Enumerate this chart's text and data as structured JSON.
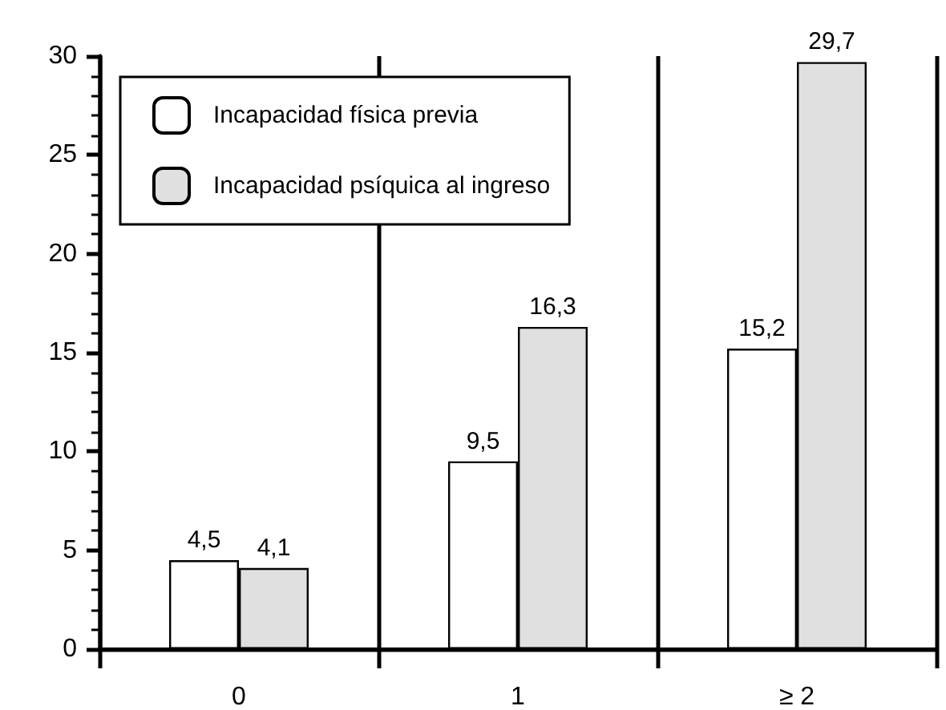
{
  "chart_data": {
    "type": "bar",
    "categories": [
      "0",
      "1",
      "≥ 2"
    ],
    "series": [
      {
        "name": "Incapacidad física previa",
        "color": "#ffffff",
        "values": [
          4.5,
          9.5,
          15.2
        ],
        "value_labels": [
          "4,5",
          "9,5",
          "15,2"
        ]
      },
      {
        "name": "Incapacidad psíquica al ingreso",
        "color": "#e0e0e0",
        "values": [
          4.1,
          16.3,
          29.7
        ],
        "value_labels": [
          "4,1",
          "16,3",
          "29,7"
        ]
      }
    ],
    "ylim": [
      0,
      30
    ],
    "yticks": [
      0,
      5,
      10,
      15,
      20,
      25,
      30
    ],
    "grid": "x",
    "legend": "top left"
  }
}
